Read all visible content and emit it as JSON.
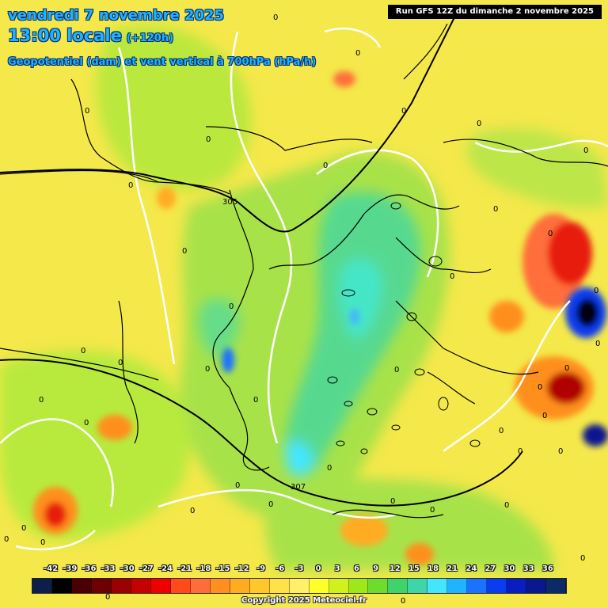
{
  "header": {
    "date_line": "vendredi 7 novembre 2025",
    "time_line": "13:00 locale",
    "lead_time": "(+120h)",
    "parameter_line": "Geopotentiel (dam) et vent vertical à 700hPa (hPa/h)"
  },
  "run_info": "Run GFS 12Z du dimanche 2 novembre 2025",
  "geopotential_labels": [
    "305",
    "307"
  ],
  "contour_zero_label": "0",
  "legend": {
    "unit": "hPa/h",
    "values": [
      "-42",
      "-39",
      "-36",
      "-33",
      "-30",
      "-27",
      "-24",
      "-21",
      "-18",
      "-15",
      "-12",
      "-9",
      "-6",
      "-3",
      "0",
      "3",
      "6",
      "9",
      "12",
      "15",
      "18",
      "21",
      "24",
      "27",
      "30",
      "33",
      "36"
    ],
    "colors": [
      "#0c1f4a",
      "#000000",
      "#4a0000",
      "#6e0000",
      "#990000",
      "#c40000",
      "#ee0000",
      "#ff4a1a",
      "#ff6e3a",
      "#ff8f1f",
      "#ffac20",
      "#ffc82a",
      "#ffe24a",
      "#fff06a",
      "#ffff2a",
      "#cff21e",
      "#9ee81a",
      "#6fdb2e",
      "#3fd36b",
      "#3ed6a6",
      "#44e6ff",
      "#1fb4ff",
      "#1a72ff",
      "#0a3cf0",
      "#0a1ec0",
      "#0a1890",
      "#0b2a66"
    ]
  },
  "copyright": "Copyright 2025 Meteociel.fr",
  "colors": {
    "title_text": "#1fb4ff",
    "title_outline": "#0b2a66",
    "run_box_bg": "#000000",
    "background_yellow": "#f4e84a"
  }
}
